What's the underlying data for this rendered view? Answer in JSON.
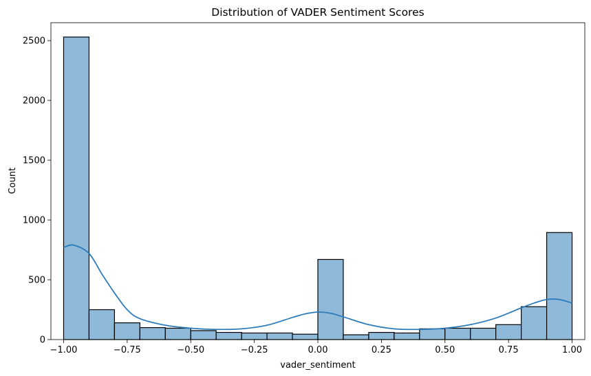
{
  "chart_data": {
    "type": "bar",
    "subtype": "histogram",
    "title": "Distribution of VADER Sentiment Scores",
    "xlabel": "vader_sentiment",
    "ylabel": "Count",
    "xlim": [
      -1.05,
      1.05
    ],
    "ylim": [
      0,
      2650
    ],
    "xticks": [
      -1.0,
      -0.75,
      -0.5,
      -0.25,
      0.0,
      0.25,
      0.5,
      0.75,
      1.0
    ],
    "xtick_labels": [
      "−1.00",
      "−0.75",
      "−0.50",
      "−0.25",
      "0.00",
      "0.25",
      "0.50",
      "0.75",
      "1.00"
    ],
    "yticks": [
      0,
      500,
      1000,
      1500,
      2000,
      2500
    ],
    "ytick_labels": [
      "0",
      "500",
      "1000",
      "1500",
      "2000",
      "2500"
    ],
    "grid": false,
    "bar_color": "#8fb9d9",
    "bar_edge_color": "#000000",
    "kde_color": "#2b7bba",
    "bin_edges": [
      -1.0,
      -0.9,
      -0.8,
      -0.7,
      -0.6,
      -0.5,
      -0.4,
      -0.3,
      -0.2,
      -0.1,
      0.0,
      0.1,
      0.2,
      0.3,
      0.4,
      0.5,
      0.6,
      0.7,
      0.8,
      0.9,
      1.0
    ],
    "counts": [
      2530,
      250,
      140,
      100,
      95,
      75,
      60,
      55,
      55,
      45,
      670,
      40,
      60,
      55,
      90,
      95,
      95,
      125,
      275,
      895
    ],
    "kde": {
      "x": [
        -1.0,
        -0.96,
        -0.9,
        -0.85,
        -0.8,
        -0.75,
        -0.7,
        -0.6,
        -0.5,
        -0.4,
        -0.3,
        -0.2,
        -0.1,
        -0.05,
        0.0,
        0.05,
        0.1,
        0.2,
        0.3,
        0.4,
        0.5,
        0.6,
        0.7,
        0.8,
        0.85,
        0.9,
        0.95,
        1.0
      ],
      "y": [
        770,
        790,
        720,
        550,
        390,
        250,
        175,
        120,
        95,
        85,
        90,
        120,
        185,
        215,
        230,
        220,
        190,
        125,
        90,
        85,
        95,
        125,
        180,
        265,
        305,
        335,
        335,
        305
      ]
    }
  }
}
